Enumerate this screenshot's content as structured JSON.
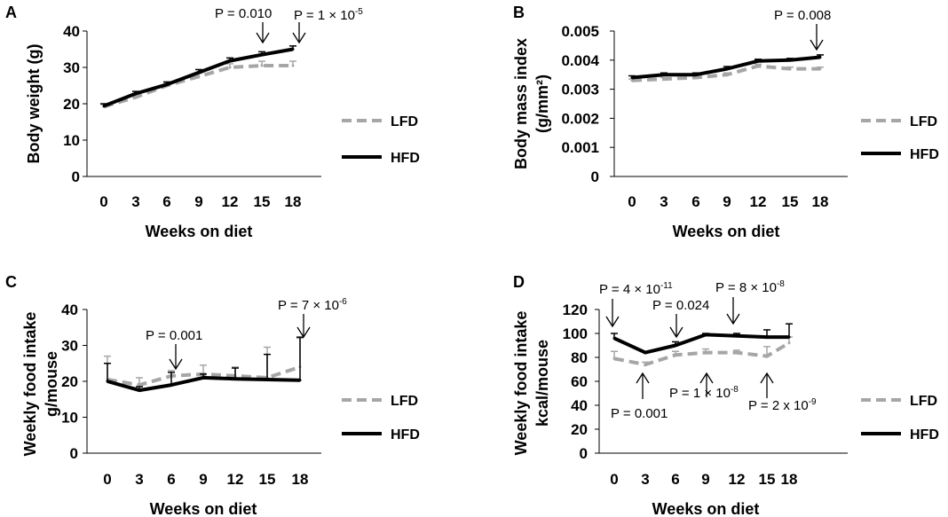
{
  "chart_data": [
    {
      "panel_label": "A",
      "type": "line",
      "xlabel": "Weeks on diet",
      "ylabel": "Body weight (g)",
      "ylabel_lines": [
        "Body weight (g)"
      ],
      "ylim": [
        0,
        40
      ],
      "yticks": [
        0,
        10,
        20,
        30,
        40
      ],
      "ytick_labels": [
        "0",
        "10",
        "20",
        "30",
        "40"
      ],
      "x": [
        0,
        3,
        6,
        9,
        12,
        15,
        18
      ],
      "categories": [
        "0",
        "3",
        "6",
        "9",
        "12",
        "15",
        "18"
      ],
      "series": [
        {
          "name": "LFD",
          "color": "#a6a6a6",
          "dashed": true,
          "values": [
            19.2,
            21.8,
            25.0,
            27.5,
            30.0,
            30.5,
            30.5
          ],
          "errors": [
            0.6,
            0.8,
            0.8,
            0.9,
            1.0,
            1.2,
            1.2
          ]
        },
        {
          "name": "HFD",
          "color": "#000000",
          "dashed": false,
          "values": [
            19.4,
            22.8,
            25.3,
            28.6,
            31.8,
            33.5,
            35.0
          ],
          "errors": [
            0.6,
            0.6,
            0.7,
            0.8,
            0.8,
            0.8,
            0.9
          ]
        }
      ],
      "legend": [
        "LFD",
        "HFD"
      ],
      "annotations": [
        {
          "base": "P = 0.010",
          "exp": "",
          "x": 15,
          "side": "above"
        },
        {
          "base": "P = 1 × 10",
          "exp": "-5",
          "x": 18,
          "side": "above"
        }
      ]
    },
    {
      "panel_label": "B",
      "type": "line",
      "xlabel": "Weeks on diet",
      "ylabel": "Body mass index (g/mm²)",
      "ylabel_lines": [
        "Body mass index",
        "(g/mm²)"
      ],
      "ylim": [
        0,
        0.005
      ],
      "yticks": [
        0,
        0.001,
        0.002,
        0.003,
        0.004,
        0.005
      ],
      "ytick_labels": [
        "0",
        "0.001",
        "0.002",
        "0.003",
        "0.004",
        "0.005"
      ],
      "x": [
        0,
        3,
        6,
        9,
        12,
        15,
        18
      ],
      "categories": [
        "0",
        "3",
        "6",
        "9",
        "12",
        "15",
        "18"
      ],
      "series": [
        {
          "name": "LFD",
          "color": "#a6a6a6",
          "dashed": true,
          "values": [
            0.0033,
            0.00335,
            0.0034,
            0.0035,
            0.0038,
            0.0037,
            0.0037
          ],
          "errors": [
            5e-05,
            5e-05,
            5e-05,
            6e-05,
            6e-05,
            6e-05,
            6e-05
          ]
        },
        {
          "name": "HFD",
          "color": "#000000",
          "dashed": false,
          "values": [
            0.0034,
            0.0035,
            0.0035,
            0.0037,
            0.00397,
            0.004,
            0.0041
          ],
          "errors": [
            6e-05,
            6e-05,
            6e-05,
            8e-05,
            6e-05,
            6e-05,
            8e-05
          ]
        }
      ],
      "legend": [
        "LFD",
        "HFD"
      ],
      "annotations": [
        {
          "base": "P = 0.008",
          "exp": "",
          "x": 18,
          "side": "above"
        }
      ]
    },
    {
      "panel_label": "C",
      "type": "line",
      "xlabel": "Weeks on diet",
      "ylabel": "Weekly food intake g/mouse",
      "ylabel_lines": [
        "Weekly food intake",
        "g/mouse"
      ],
      "ylim": [
        0,
        40
      ],
      "yticks": [
        0,
        10,
        20,
        30,
        40
      ],
      "ytick_labels": [
        "0",
        "10",
        "20",
        "30",
        "40"
      ],
      "x": [
        0,
        3,
        6,
        9,
        12,
        15,
        18
      ],
      "categories": [
        "0",
        "3",
        "6",
        "9",
        "12",
        "15",
        "18"
      ],
      "series": [
        {
          "name": "LFD",
          "color": "#a6a6a6",
          "dashed": true,
          "values": [
            20.5,
            19.0,
            21.5,
            22.0,
            21.5,
            21.0,
            24.0
          ],
          "errors": [
            6.5,
            2.0,
            1.5,
            2.5,
            2.5,
            8.5,
            8.0
          ]
        },
        {
          "name": "HFD",
          "color": "#000000",
          "dashed": false,
          "values": [
            20.0,
            17.5,
            19.0,
            21.0,
            20.7,
            20.5,
            20.3
          ],
          "errors": [
            5.0,
            1.0,
            3.5,
            1.0,
            3.0,
            7.0,
            12.0
          ]
        }
      ],
      "legend": [
        "LFD",
        "HFD"
      ],
      "annotations": [
        {
          "base": "P = 0.001",
          "exp": "",
          "x": 6,
          "side": "above"
        },
        {
          "base": "P = 7 × 10",
          "exp": "-6",
          "x": 18,
          "side": "above"
        }
      ]
    },
    {
      "panel_label": "D",
      "type": "line",
      "xlabel": "Weeks on diet",
      "ylabel": "Weekly food intake kcal/mouse",
      "ylabel_lines": [
        "Weekly food intake",
        "kcal/mouse"
      ],
      "ylim": [
        0,
        120
      ],
      "yticks": [
        0,
        20,
        40,
        60,
        80,
        100,
        120
      ],
      "ytick_labels": [
        "0",
        "20",
        "40",
        "60",
        "80",
        "100",
        "120"
      ],
      "x": [
        0,
        3,
        6,
        9,
        12,
        15,
        18
      ],
      "categories": [
        "0",
        "3",
        "6",
        "9",
        "12",
        "15",
        "18"
      ],
      "series": [
        {
          "name": "LFD",
          "color": "#a6a6a6",
          "dashed": true,
          "values": [
            79,
            74,
            82,
            84,
            84,
            81,
            92
          ],
          "errors": [
            6,
            2,
            3,
            3,
            2,
            8,
            5
          ]
        },
        {
          "name": "HFD",
          "color": "#000000",
          "dashed": false,
          "values": [
            96,
            84,
            90,
            99,
            98,
            97,
            97
          ],
          "errors": [
            4,
            1,
            3,
            1,
            2,
            6,
            11
          ]
        }
      ],
      "legend": [
        "LFD",
        "HFD"
      ],
      "annotations": [
        {
          "base": "P = 4 × 10",
          "exp": "-11",
          "x": 0,
          "side": "above"
        },
        {
          "base": "P = 0.024",
          "exp": "",
          "x": 6,
          "side": "above"
        },
        {
          "base": "P = 8 × 10",
          "exp": "-8",
          "x": 12,
          "side": "above"
        },
        {
          "base": "P = 0.001",
          "exp": "",
          "x": 3,
          "side": "below"
        },
        {
          "base": "P = 1 × 10",
          "exp": "-8",
          "x": 9,
          "side": "below"
        },
        {
          "base": "P = 2 x 10",
          "exp": "-9",
          "x": 15,
          "side": "below"
        }
      ]
    }
  ]
}
